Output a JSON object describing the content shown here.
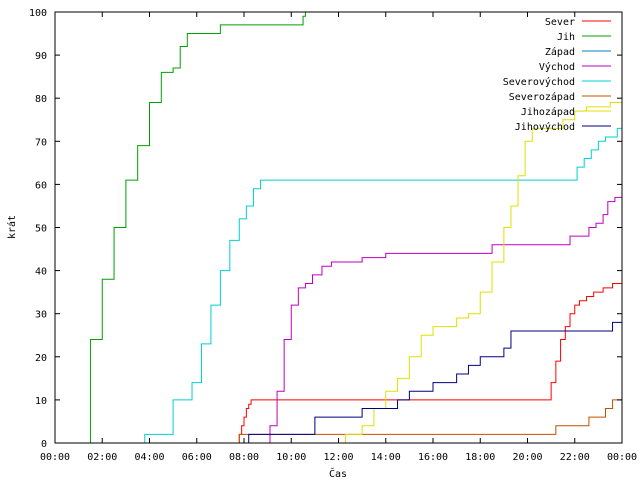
{
  "chart_data": {
    "type": "line",
    "xlabel": "Čas",
    "ylabel": "krát",
    "xlim": [
      0,
      24
    ],
    "ylim": [
      0,
      100
    ],
    "xticks": [
      0,
      2,
      4,
      6,
      8,
      10,
      12,
      14,
      16,
      18,
      20,
      22,
      24
    ],
    "xtick_labels": [
      "00:00",
      "02:00",
      "04:00",
      "06:00",
      "08:00",
      "10:00",
      "12:00",
      "14:00",
      "16:00",
      "18:00",
      "20:00",
      "22:00",
      "00:00"
    ],
    "yticks": [
      0,
      10,
      20,
      30,
      40,
      50,
      60,
      70,
      80,
      90,
      100
    ],
    "ytick_labels": [
      "0",
      "10",
      "20",
      "30",
      "40",
      "50",
      "60",
      "70",
      "80",
      "90",
      "100"
    ],
    "grid": false,
    "legend_position": "top-right",
    "series": [
      {
        "name": "Sever",
        "color": "#ff0000",
        "x": [
          0,
          7.7,
          7.8,
          7.9,
          8.0,
          8.1,
          8.2,
          8.3,
          8.5,
          20.8,
          21.0,
          21.2,
          21.4,
          21.6,
          21.8,
          22.0,
          22.2,
          22.5,
          22.8,
          23.2,
          23.6,
          24.0
        ],
        "y": [
          0,
          0,
          2,
          4,
          6,
          8,
          9,
          10,
          10,
          10,
          14,
          19,
          24,
          27,
          30,
          32,
          33,
          34,
          35,
          36,
          37,
          37
        ]
      },
      {
        "name": "Jih",
        "color": "#00a000",
        "x": [
          0,
          0.75,
          1.5,
          2.0,
          2.5,
          3.0,
          3.5,
          4.0,
          4.5,
          4.6,
          5.0,
          5.3,
          5.6,
          6.0,
          6.9,
          7.0,
          10.3,
          10.5,
          10.6
        ],
        "y": [
          0,
          0,
          24,
          38,
          50,
          61,
          69,
          79,
          86,
          86,
          87,
          92,
          95,
          95,
          95,
          97,
          97,
          99,
          100
        ]
      },
      {
        "name": "Západ",
        "color": "#0080c0",
        "x": [
          0,
          3.8,
          4.7,
          4.8,
          24.0
        ],
        "y": [
          0,
          0,
          0,
          0,
          0
        ]
      },
      {
        "name": "Východ",
        "color": "#c000c0",
        "x": [
          0,
          8.9,
          9.1,
          9.4,
          9.7,
          10.0,
          10.3,
          10.6,
          10.9,
          11.3,
          11.7,
          12.2,
          13.0,
          14.0,
          18.0,
          18.5,
          19.0,
          20.0,
          21.0,
          21.8,
          22.3,
          22.6,
          22.9,
          23.2,
          23.4,
          23.7,
          24.0
        ],
        "y": [
          0,
          0,
          4,
          12,
          24,
          32,
          36,
          37,
          39,
          41,
          42,
          42,
          43,
          44,
          44,
          46,
          46,
          46,
          46,
          48,
          48,
          50,
          51,
          53,
          56,
          57,
          57
        ]
      },
      {
        "name": "Severovýchod",
        "color": "#00d0d0",
        "x": [
          0,
          3.8,
          4.7,
          5.0,
          5.5,
          5.8,
          6.2,
          6.6,
          7.0,
          7.4,
          7.8,
          8.1,
          8.4,
          8.7,
          21.9,
          22.1,
          22.4,
          22.7,
          23.0,
          23.3,
          23.6,
          23.8,
          24.0
        ],
        "y": [
          0,
          2,
          2,
          10,
          10,
          14,
          23,
          32,
          40,
          47,
          52,
          55,
          59,
          61,
          61,
          64,
          66,
          68,
          70,
          71,
          71,
          73,
          73
        ]
      },
      {
        "name": "Severozápad",
        "color": "#c05000",
        "x": [
          0,
          7.8,
          20.9,
          21.2,
          21.6,
          22.6,
          23.0,
          23.3,
          23.6,
          24.0
        ],
        "y": [
          0,
          2,
          2,
          4,
          4,
          6,
          6,
          8,
          10,
          10
        ]
      },
      {
        "name": "Jihozápad",
        "color": "#e0e000",
        "x": [
          0,
          10.2,
          12.3,
          13.0,
          13.5,
          14.0,
          14.5,
          15.0,
          15.5,
          16.0,
          16.5,
          17.0,
          17.5,
          18.0,
          18.5,
          19.0,
          19.3,
          19.6,
          19.9,
          20.2,
          20.5,
          21.0,
          21.5,
          22.0,
          22.5,
          23.0,
          23.5,
          24.0
        ],
        "y": [
          0,
          0,
          2,
          4,
          8,
          12,
          15,
          20,
          25,
          27,
          27,
          29,
          30,
          35,
          42,
          50,
          55,
          62,
          70,
          73,
          73,
          73,
          75,
          77,
          78,
          78,
          79,
          79
        ]
      },
      {
        "name": "Jihovýchod",
        "color": "#000080",
        "x": [
          0,
          8.2,
          10.4,
          11.0,
          12.0,
          13.0,
          14.0,
          14.5,
          15.0,
          16.0,
          17.0,
          17.5,
          18.0,
          18.5,
          19.0,
          19.3,
          20.0,
          21.0,
          22.0,
          23.0,
          23.6,
          24.0
        ],
        "y": [
          0,
          2,
          2,
          6,
          6,
          8,
          8,
          10,
          12,
          14,
          16,
          18,
          20,
          20,
          22,
          26,
          26,
          26,
          26,
          26,
          28,
          30
        ]
      }
    ]
  }
}
